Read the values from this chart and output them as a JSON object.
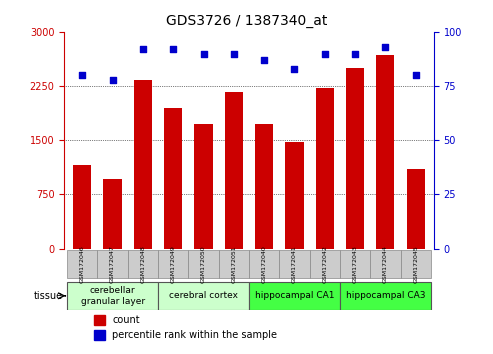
{
  "title": "GDS3726 / 1387340_at",
  "samples": [
    "GSM172046",
    "GSM172047",
    "GSM172048",
    "GSM172049",
    "GSM172050",
    "GSM172051",
    "GSM172040",
    "GSM172041",
    "GSM172042",
    "GSM172043",
    "GSM172044",
    "GSM172045"
  ],
  "counts": [
    1150,
    970,
    2330,
    1950,
    1730,
    2170,
    1720,
    1480,
    2220,
    2500,
    2680,
    1100
  ],
  "percentiles": [
    80,
    78,
    92,
    92,
    90,
    90,
    87,
    83,
    90,
    90,
    93,
    80
  ],
  "bar_color": "#cc0000",
  "dot_color": "#0000cc",
  "ylim_left": [
    0,
    3000
  ],
  "ylim_right": [
    0,
    100
  ],
  "yticks_left": [
    0,
    750,
    1500,
    2250,
    3000
  ],
  "yticks_right": [
    0,
    25,
    50,
    75,
    100
  ],
  "grid_color": "#000000",
  "tissue_groups": [
    {
      "label": "cerebellar\ngranular layer",
      "start": 0,
      "end": 3,
      "color": "#ccffcc"
    },
    {
      "label": "cerebral cortex",
      "start": 3,
      "end": 6,
      "color": "#ccffcc"
    },
    {
      "label": "hippocampal CA1",
      "start": 6,
      "end": 9,
      "color": "#44ff44"
    },
    {
      "label": "hippocampal CA3",
      "start": 9,
      "end": 12,
      "color": "#44ff44"
    }
  ],
  "tissue_label": "tissue",
  "legend_count_label": "count",
  "legend_pct_label": "percentile rank within the sample",
  "bg_color": "#ffffff",
  "plot_bg_color": "#ffffff",
  "tick_area_color": "#cccccc"
}
